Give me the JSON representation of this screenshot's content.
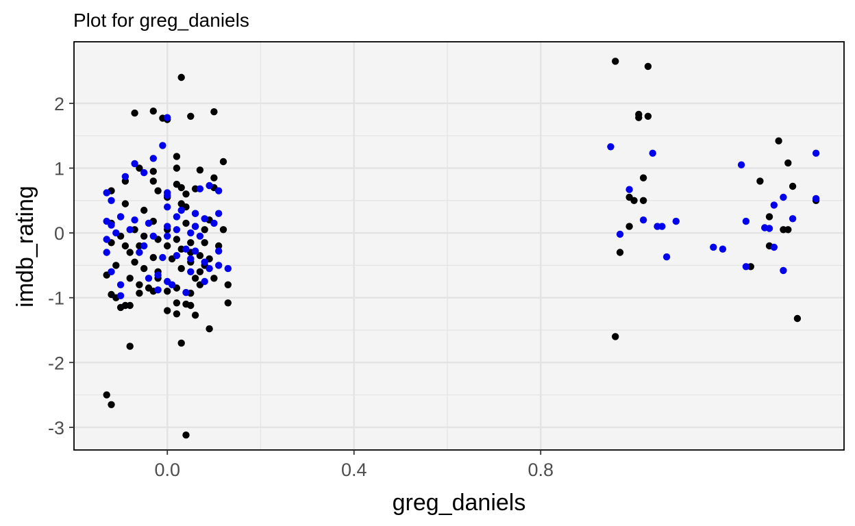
{
  "chart_data": {
    "type": "scatter",
    "title": "Plot for  greg_daniels",
    "xlabel": "greg_daniels",
    "ylabel": "imdb_rating",
    "xlim": [
      -0.2,
      1.45
    ],
    "ylim": [
      -3.35,
      2.95
    ],
    "x_ticks": [
      0.0,
      0.4,
      0.8
    ],
    "x_tick_labels": [
      "0.0",
      "0.4",
      "0.8"
    ],
    "y_ticks": [
      -3,
      -2,
      -1,
      0,
      1,
      2
    ],
    "y_tick_labels": [
      "-3",
      "-2",
      "-1",
      "0",
      "1",
      "2"
    ],
    "grid": true,
    "background": "#f4f4f4",
    "grid_color": "#e3e3e3",
    "series": [
      {
        "color": "#000000",
        "points": [
          [
            0.03,
            2.4
          ],
          [
            -0.07,
            1.85
          ],
          [
            -0.03,
            1.88
          ],
          [
            0.0,
            1.75
          ],
          [
            0.05,
            1.8
          ],
          [
            0.1,
            1.87
          ],
          [
            -0.01,
            1.77
          ],
          [
            0.02,
            1.18
          ],
          [
            0.12,
            1.1
          ],
          [
            -0.06,
            1.0
          ],
          [
            0.02,
            1.0
          ],
          [
            -0.03,
            0.95
          ],
          [
            0.07,
            0.97
          ],
          [
            -0.09,
            0.8
          ],
          [
            -0.03,
            0.8
          ],
          [
            0.02,
            0.75
          ],
          [
            0.03,
            0.7
          ],
          [
            0.1,
            0.85
          ],
          [
            0.1,
            0.7
          ],
          [
            -0.12,
            0.65
          ],
          [
            0.06,
            0.68
          ],
          [
            -0.02,
            0.65
          ],
          [
            0.04,
            0.6
          ],
          [
            0.0,
            0.55
          ],
          [
            0.03,
            0.45
          ],
          [
            -0.09,
            0.45
          ],
          [
            -0.05,
            0.35
          ],
          [
            0.04,
            0.4
          ],
          [
            0.06,
            0.3
          ],
          [
            -0.1,
            0.25
          ],
          [
            0.09,
            0.2
          ],
          [
            -0.12,
            0.15
          ],
          [
            -0.03,
            0.18
          ],
          [
            0.04,
            0.15
          ],
          [
            0.06,
            0.1
          ],
          [
            0.12,
            0.05
          ],
          [
            -0.07,
            0.05
          ],
          [
            0.0,
            0.05
          ],
          [
            0.08,
            0.05
          ],
          [
            -0.1,
            -0.05
          ],
          [
            -0.05,
            -0.05
          ],
          [
            0.02,
            -0.1
          ],
          [
            -0.02,
            -0.1
          ],
          [
            0.05,
            -0.15
          ],
          [
            0.08,
            -0.15
          ],
          [
            0.11,
            -0.2
          ],
          [
            -0.12,
            -0.15
          ],
          [
            -0.09,
            -0.2
          ],
          [
            -0.06,
            -0.2
          ],
          [
            0.0,
            -0.2
          ],
          [
            0.03,
            -0.25
          ],
          [
            0.05,
            -0.3
          ],
          [
            -0.08,
            -0.3
          ],
          [
            0.07,
            -0.35
          ],
          [
            0.09,
            -0.4
          ],
          [
            -0.03,
            -0.38
          ],
          [
            0.01,
            -0.4
          ],
          [
            -0.07,
            -0.45
          ],
          [
            0.05,
            -0.45
          ],
          [
            0.08,
            -0.5
          ],
          [
            -0.11,
            -0.5
          ],
          [
            -0.05,
            -0.55
          ],
          [
            -0.02,
            -0.6
          ],
          [
            0.03,
            -0.55
          ],
          [
            0.07,
            -0.6
          ],
          [
            -0.13,
            -0.65
          ],
          [
            -0.08,
            -0.7
          ],
          [
            -0.02,
            -0.7
          ],
          [
            0.06,
            -0.7
          ],
          [
            0.1,
            -0.7
          ],
          [
            0.13,
            -0.8
          ],
          [
            -0.06,
            -0.8
          ],
          [
            0.07,
            -0.8
          ],
          [
            -0.04,
            -0.85
          ],
          [
            0.02,
            -0.85
          ],
          [
            -0.03,
            -0.9
          ],
          [
            0.0,
            -0.9
          ],
          [
            -0.06,
            -0.93
          ],
          [
            0.05,
            -0.93
          ],
          [
            -0.12,
            -0.95
          ],
          [
            -0.11,
            -1.0
          ],
          [
            0.13,
            -1.08
          ],
          [
            0.02,
            -1.08
          ],
          [
            -0.08,
            -1.12
          ],
          [
            -0.1,
            -1.15
          ],
          [
            -0.09,
            -1.12
          ],
          [
            0.05,
            -1.12
          ],
          [
            0.04,
            -1.1
          ],
          [
            0.0,
            -1.2
          ],
          [
            0.02,
            -1.25
          ],
          [
            0.06,
            -1.27
          ],
          [
            0.09,
            -1.48
          ],
          [
            0.03,
            -1.7
          ],
          [
            -0.08,
            -1.75
          ],
          [
            -0.13,
            -2.5
          ],
          [
            -0.12,
            -2.65
          ],
          [
            0.04,
            -3.12
          ],
          [
            0.96,
            2.65
          ],
          [
            1.03,
            2.57
          ],
          [
            1.01,
            1.83
          ],
          [
            1.01,
            1.78
          ],
          [
            1.03,
            1.8
          ],
          [
            1.31,
            1.42
          ],
          [
            1.33,
            1.08
          ],
          [
            1.27,
            0.8
          ],
          [
            1.02,
            0.85
          ],
          [
            1.34,
            0.72
          ],
          [
            0.99,
            0.55
          ],
          [
            1.0,
            0.5
          ],
          [
            1.02,
            0.5
          ],
          [
            1.39,
            0.5
          ],
          [
            1.29,
            0.25
          ],
          [
            0.99,
            0.1
          ],
          [
            1.33,
            0.05
          ],
          [
            1.32,
            0.05
          ],
          [
            0.97,
            -0.3
          ],
          [
            1.29,
            -0.2
          ],
          [
            1.25,
            -0.52
          ],
          [
            1.35,
            -1.32
          ],
          [
            0.96,
            -1.6
          ]
        ]
      },
      {
        "color": "#0000ee",
        "points": [
          [
            0.0,
            1.78
          ],
          [
            -0.01,
            1.35
          ],
          [
            -0.03,
            1.15
          ],
          [
            -0.07,
            1.07
          ],
          [
            -0.05,
            0.93
          ],
          [
            -0.09,
            0.87
          ],
          [
            0.07,
            0.68
          ],
          [
            0.09,
            0.73
          ],
          [
            0.11,
            0.65
          ],
          [
            -0.13,
            0.62
          ],
          [
            0.0,
            0.62
          ],
          [
            0.0,
            0.58
          ],
          [
            -0.12,
            0.5
          ],
          [
            0.0,
            0.4
          ],
          [
            0.03,
            0.35
          ],
          [
            0.06,
            0.3
          ],
          [
            0.11,
            0.3
          ],
          [
            -0.1,
            0.25
          ],
          [
            -0.07,
            0.2
          ],
          [
            0.02,
            0.25
          ],
          [
            0.08,
            0.22
          ],
          [
            -0.13,
            0.18
          ],
          [
            -0.12,
            0.12
          ],
          [
            -0.04,
            0.15
          ],
          [
            0.0,
            0.1
          ],
          [
            0.06,
            0.1
          ],
          [
            0.1,
            0.15
          ],
          [
            -0.08,
            0.05
          ],
          [
            0.02,
            0.05
          ],
          [
            0.05,
            0.0
          ],
          [
            -0.11,
            0.0
          ],
          [
            0.0,
            -0.05
          ],
          [
            -0.03,
            -0.05
          ],
          [
            0.07,
            -0.05
          ],
          [
            -0.13,
            -0.1
          ],
          [
            -0.05,
            -0.2
          ],
          [
            0.04,
            -0.25
          ],
          [
            0.06,
            -0.28
          ],
          [
            0.11,
            -0.28
          ],
          [
            -0.13,
            -0.3
          ],
          [
            -0.06,
            -0.3
          ],
          [
            0.02,
            -0.35
          ],
          [
            -0.01,
            -0.38
          ],
          [
            0.05,
            -0.4
          ],
          [
            0.08,
            -0.45
          ],
          [
            0.11,
            -0.5
          ],
          [
            0.13,
            -0.55
          ],
          [
            -0.12,
            -0.6
          ],
          [
            -0.02,
            -0.65
          ],
          [
            0.05,
            -0.6
          ],
          [
            0.09,
            -0.55
          ],
          [
            -0.04,
            -0.7
          ],
          [
            0.0,
            -0.75
          ],
          [
            0.08,
            -0.75
          ],
          [
            -0.1,
            -0.8
          ],
          [
            0.01,
            -0.8
          ],
          [
            -0.02,
            -0.88
          ],
          [
            0.04,
            -0.92
          ],
          [
            -0.1,
            -0.97
          ],
          [
            0.95,
            1.33
          ],
          [
            1.04,
            1.23
          ],
          [
            1.23,
            1.05
          ],
          [
            1.39,
            1.23
          ],
          [
            0.99,
            0.67
          ],
          [
            1.32,
            0.55
          ],
          [
            1.39,
            0.53
          ],
          [
            1.3,
            0.43
          ],
          [
            1.02,
            0.2
          ],
          [
            1.24,
            0.18
          ],
          [
            1.34,
            0.22
          ],
          [
            1.05,
            0.1
          ],
          [
            1.06,
            0.1
          ],
          [
            1.09,
            0.18
          ],
          [
            1.28,
            0.08
          ],
          [
            1.29,
            0.07
          ],
          [
            0.97,
            -0.02
          ],
          [
            1.07,
            -0.37
          ],
          [
            1.17,
            -0.22
          ],
          [
            1.19,
            -0.25
          ],
          [
            1.24,
            -0.52
          ],
          [
            1.3,
            -0.22
          ],
          [
            1.32,
            -0.58
          ]
        ]
      }
    ]
  }
}
